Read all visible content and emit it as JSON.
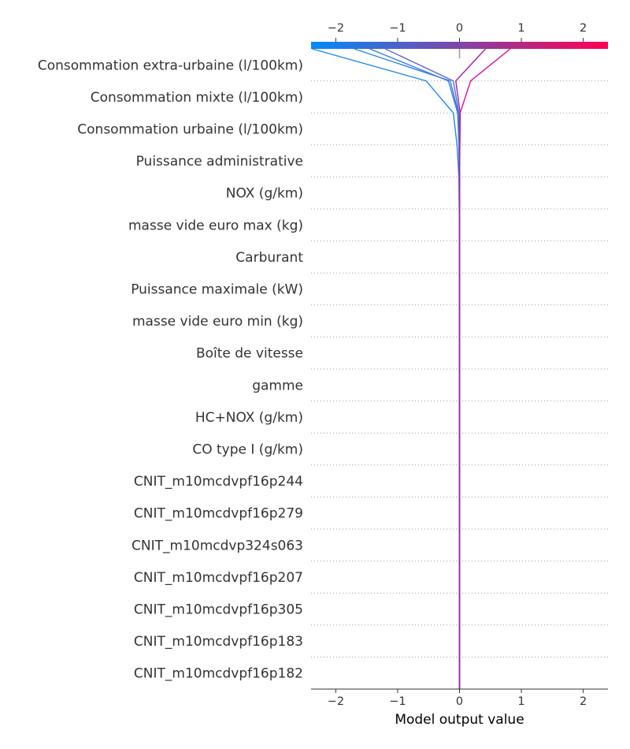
{
  "chart_data": {
    "type": "decision",
    "title": "",
    "xlabel": "Model output value",
    "ylabel": "",
    "xlim": [
      -2.4,
      2.4
    ],
    "ticks": [
      -2,
      -1,
      0,
      1,
      2
    ],
    "tick_labels": [
      "−2",
      "−1",
      "0",
      "1",
      "2"
    ],
    "base_value": 0,
    "colorbar": {
      "from": "#008bfb",
      "to": "#ff0052"
    },
    "features": [
      "Consommation extra-urbaine (l/100km)",
      "Consommation mixte (l/100km)",
      "Consommation urbaine (l/100km)",
      "Puissance administrative",
      "NOX (g/km)",
      "masse vide euro max (kg)",
      "Carburant",
      "Puissance maximale (kW)",
      "masse vide euro min (kg)",
      "Boîte de vitesse",
      "gamme",
      "HC+NOX (g/km)",
      "CO type I (g/km)",
      "CNIT_m10mcdvpf16p244",
      "CNIT_m10mcdvpf16p279",
      "CNIT_m10mcdvp324s063",
      "CNIT_m10mcdvpf16p207",
      "CNIT_m10mcdvpf16p305",
      "CNIT_m10mcdvpf16p183",
      "CNIT_m10mcdvpf16p182"
    ],
    "series": [
      {
        "values": [
          -2.38,
          -0.54,
          -0.1,
          -0.04,
          -0.01,
          -0.005,
          0,
          0,
          0,
          0,
          0,
          0,
          0,
          0,
          0,
          0,
          0,
          0,
          0,
          0,
          0
        ],
        "color": "#1e88e5"
      },
      {
        "values": [
          -1.7,
          -0.15,
          -0.02,
          -0.01,
          0,
          0,
          0,
          0,
          0,
          0,
          0,
          0,
          0,
          0,
          0,
          0,
          0,
          0,
          0,
          0,
          0
        ],
        "color": "#2c82e3"
      },
      {
        "values": [
          -1.45,
          -0.18,
          -0.03,
          -0.01,
          0,
          0,
          0,
          0,
          0,
          0,
          0,
          0,
          0,
          0,
          0,
          0,
          0,
          0,
          0,
          0,
          0
        ],
        "color": "#3a7de0"
      },
      {
        "values": [
          -1.2,
          -0.1,
          -0.01,
          0,
          0,
          0,
          0,
          0,
          0,
          0,
          0,
          0,
          0,
          0,
          0,
          0,
          0,
          0,
          0,
          0,
          0
        ],
        "color": "#6168d0"
      },
      {
        "values": [
          0.82,
          0.18,
          0.01,
          0.005,
          0,
          0,
          0,
          0,
          0,
          0,
          0,
          0,
          0,
          0,
          0,
          0,
          0,
          0,
          0,
          0,
          0
        ],
        "color": "#d0149a"
      },
      {
        "values": [
          0.42,
          -0.06,
          0.01,
          0.005,
          0,
          0,
          0,
          0,
          0,
          0,
          0,
          0,
          0,
          0,
          0,
          0,
          0,
          0,
          0,
          0,
          0
        ],
        "color": "#a0249f"
      }
    ]
  }
}
